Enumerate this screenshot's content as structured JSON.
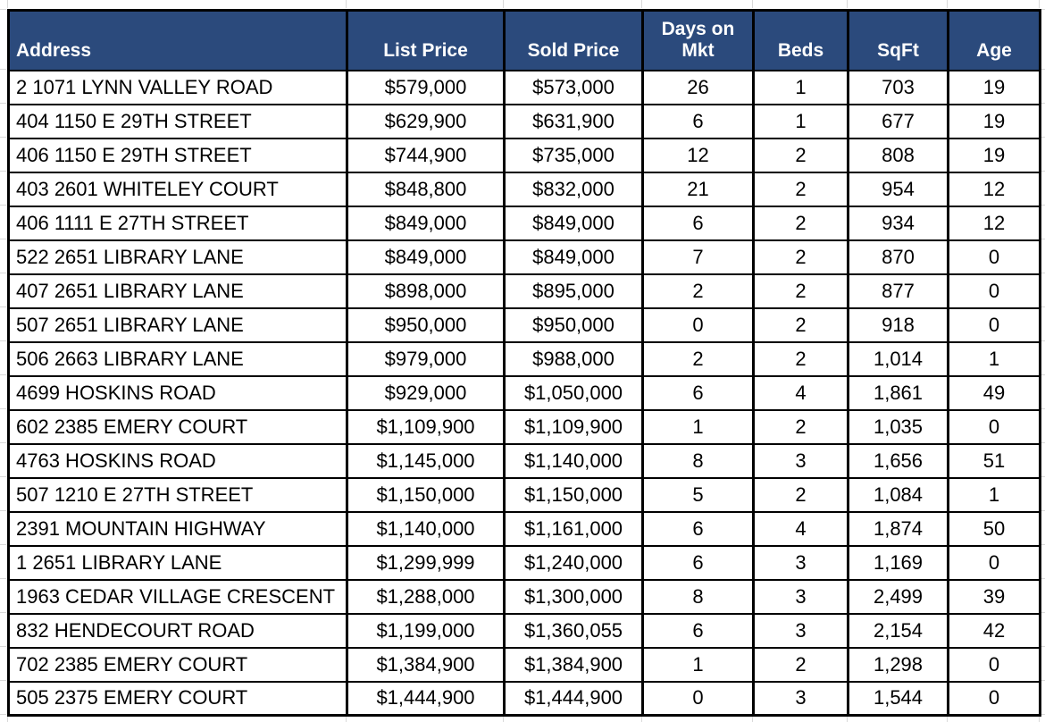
{
  "colors": {
    "header_bg": "#2b4a7c",
    "header_text": "#ffffff",
    "cell_bg": "#ffffff",
    "border": "#000000",
    "gridline": "#d9d9d9"
  },
  "table": {
    "columns": [
      {
        "key": "address",
        "label": "Address",
        "align": "left"
      },
      {
        "key": "list-price",
        "label": "List Price",
        "align": "center"
      },
      {
        "key": "sold-price",
        "label": "Sold Price",
        "align": "center"
      },
      {
        "key": "days-on-mkt",
        "label": "Days on Mkt",
        "align": "center"
      },
      {
        "key": "beds",
        "label": "Beds",
        "align": "center"
      },
      {
        "key": "sqft",
        "label": "SqFt",
        "align": "center"
      },
      {
        "key": "age",
        "label": "Age",
        "align": "center"
      }
    ],
    "rows": [
      [
        "2 1071 LYNN VALLEY ROAD",
        "$579,000",
        "$573,000",
        "26",
        "1",
        "703",
        "19"
      ],
      [
        "404 1150 E 29TH STREET",
        "$629,900",
        "$631,900",
        "6",
        "1",
        "677",
        "19"
      ],
      [
        "406 1150 E 29TH STREET",
        "$744,900",
        "$735,000",
        "12",
        "2",
        "808",
        "19"
      ],
      [
        "403 2601 WHITELEY COURT",
        "$848,800",
        "$832,000",
        "21",
        "2",
        "954",
        "12"
      ],
      [
        "406 1111 E 27TH STREET",
        "$849,000",
        "$849,000",
        "6",
        "2",
        "934",
        "12"
      ],
      [
        "522 2651 LIBRARY LANE",
        "$849,000",
        "$849,000",
        "7",
        "2",
        "870",
        "0"
      ],
      [
        "407 2651 LIBRARY LANE",
        "$898,000",
        "$895,000",
        "2",
        "2",
        "877",
        "0"
      ],
      [
        "507 2651 LIBRARY LANE",
        "$950,000",
        "$950,000",
        "0",
        "2",
        "918",
        "0"
      ],
      [
        "506 2663 LIBRARY LANE",
        "$979,000",
        "$988,000",
        "2",
        "2",
        "1,014",
        "1"
      ],
      [
        "4699 HOSKINS ROAD",
        "$929,000",
        "$1,050,000",
        "6",
        "4",
        "1,861",
        "49"
      ],
      [
        "602 2385 EMERY COURT",
        "$1,109,900",
        "$1,109,900",
        "1",
        "2",
        "1,035",
        "0"
      ],
      [
        "4763 HOSKINS ROAD",
        "$1,145,000",
        "$1,140,000",
        "8",
        "3",
        "1,656",
        "51"
      ],
      [
        "507 1210 E 27TH STREET",
        "$1,150,000",
        "$1,150,000",
        "5",
        "2",
        "1,084",
        "1"
      ],
      [
        "2391 MOUNTAIN HIGHWAY",
        "$1,140,000",
        "$1,161,000",
        "6",
        "4",
        "1,874",
        "50"
      ],
      [
        "1 2651 LIBRARY LANE",
        "$1,299,999",
        "$1,240,000",
        "6",
        "3",
        "1,169",
        "0"
      ],
      [
        "1963 CEDAR VILLAGE CRESCENT",
        "$1,288,000",
        "$1,300,000",
        "8",
        "3",
        "2,499",
        "39"
      ],
      [
        "832 HENDECOURT ROAD",
        "$1,199,000",
        "$1,360,055",
        "6",
        "3",
        "2,154",
        "42"
      ],
      [
        "702 2385 EMERY COURT",
        "$1,384,900",
        "$1,384,900",
        "1",
        "2",
        "1,298",
        "0"
      ],
      [
        "505 2375 EMERY COURT",
        "$1,444,900",
        "$1,444,900",
        "0",
        "3",
        "1,544",
        "0"
      ]
    ]
  }
}
